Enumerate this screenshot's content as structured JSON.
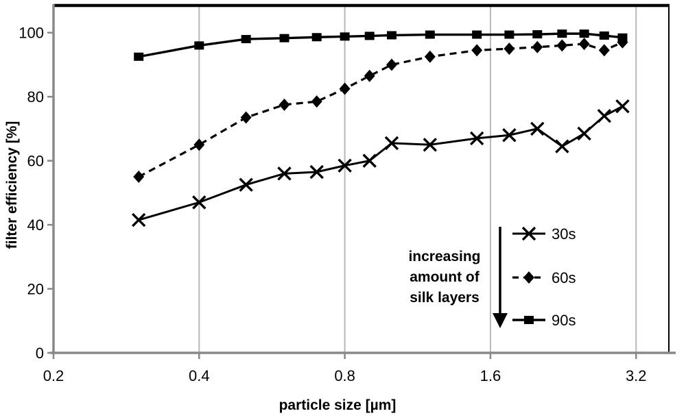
{
  "chart_data": {
    "type": "line",
    "title": "",
    "xlabel": "particle size [µm]",
    "ylabel": "filter efficiency [%]",
    "x_scale": "log2",
    "xlim": [
      0.2,
      3.74
    ],
    "ylim": [
      0,
      108.5
    ],
    "x_ticks": [
      0.2,
      0.4,
      0.8,
      1.6,
      3.2
    ],
    "x_tick_labels": [
      "0.2",
      "0.4",
      "0.8",
      "1.6",
      "3.2"
    ],
    "x_gridlines": [
      0.4,
      0.8,
      1.6,
      3.2
    ],
    "y_ticks": [
      0,
      20,
      40,
      60,
      80,
      100
    ],
    "y_tick_labels": [
      "0",
      "20",
      "40",
      "60",
      "80",
      "100"
    ],
    "grid": "vertical-only",
    "x": [
      0.3,
      0.4,
      0.5,
      0.6,
      0.7,
      0.8,
      0.9,
      1.0,
      1.2,
      1.5,
      1.75,
      2.0,
      2.25,
      2.5,
      2.75,
      3.0
    ],
    "series": [
      {
        "name": "30s",
        "marker": "x",
        "line": "solid",
        "values": [
          41.5,
          47,
          52.5,
          56,
          56.5,
          58.5,
          60,
          65.5,
          65,
          67,
          68,
          70,
          64.5,
          68.5,
          74,
          77
        ]
      },
      {
        "name": "60s",
        "marker": "diamond",
        "line": "dashed",
        "values": [
          55,
          65,
          73.5,
          77.5,
          78.5,
          82.5,
          86.5,
          90,
          92.5,
          94.5,
          95,
          95.5,
          96,
          96.5,
          94.5,
          97
        ]
      },
      {
        "name": "90s",
        "marker": "square",
        "line": "solid",
        "values": [
          92.5,
          96,
          98,
          98.3,
          98.6,
          98.8,
          99,
          99.2,
          99.4,
          99.4,
          99.4,
          99.5,
          99.7,
          99.7,
          99.1,
          98.5
        ]
      }
    ],
    "legend": {
      "position": "inside-right",
      "entries": [
        "30s",
        "60s",
        "90s"
      ]
    },
    "annotation": {
      "lines": [
        "increasing",
        "amount of",
        "silk layers"
      ],
      "arrow": "down"
    }
  },
  "colors": {
    "series": "#000000",
    "plot_border": "#000000",
    "axis": "#898989",
    "gridline": "#b8b8b8",
    "background": "#ffffff",
    "text": "#000000"
  }
}
